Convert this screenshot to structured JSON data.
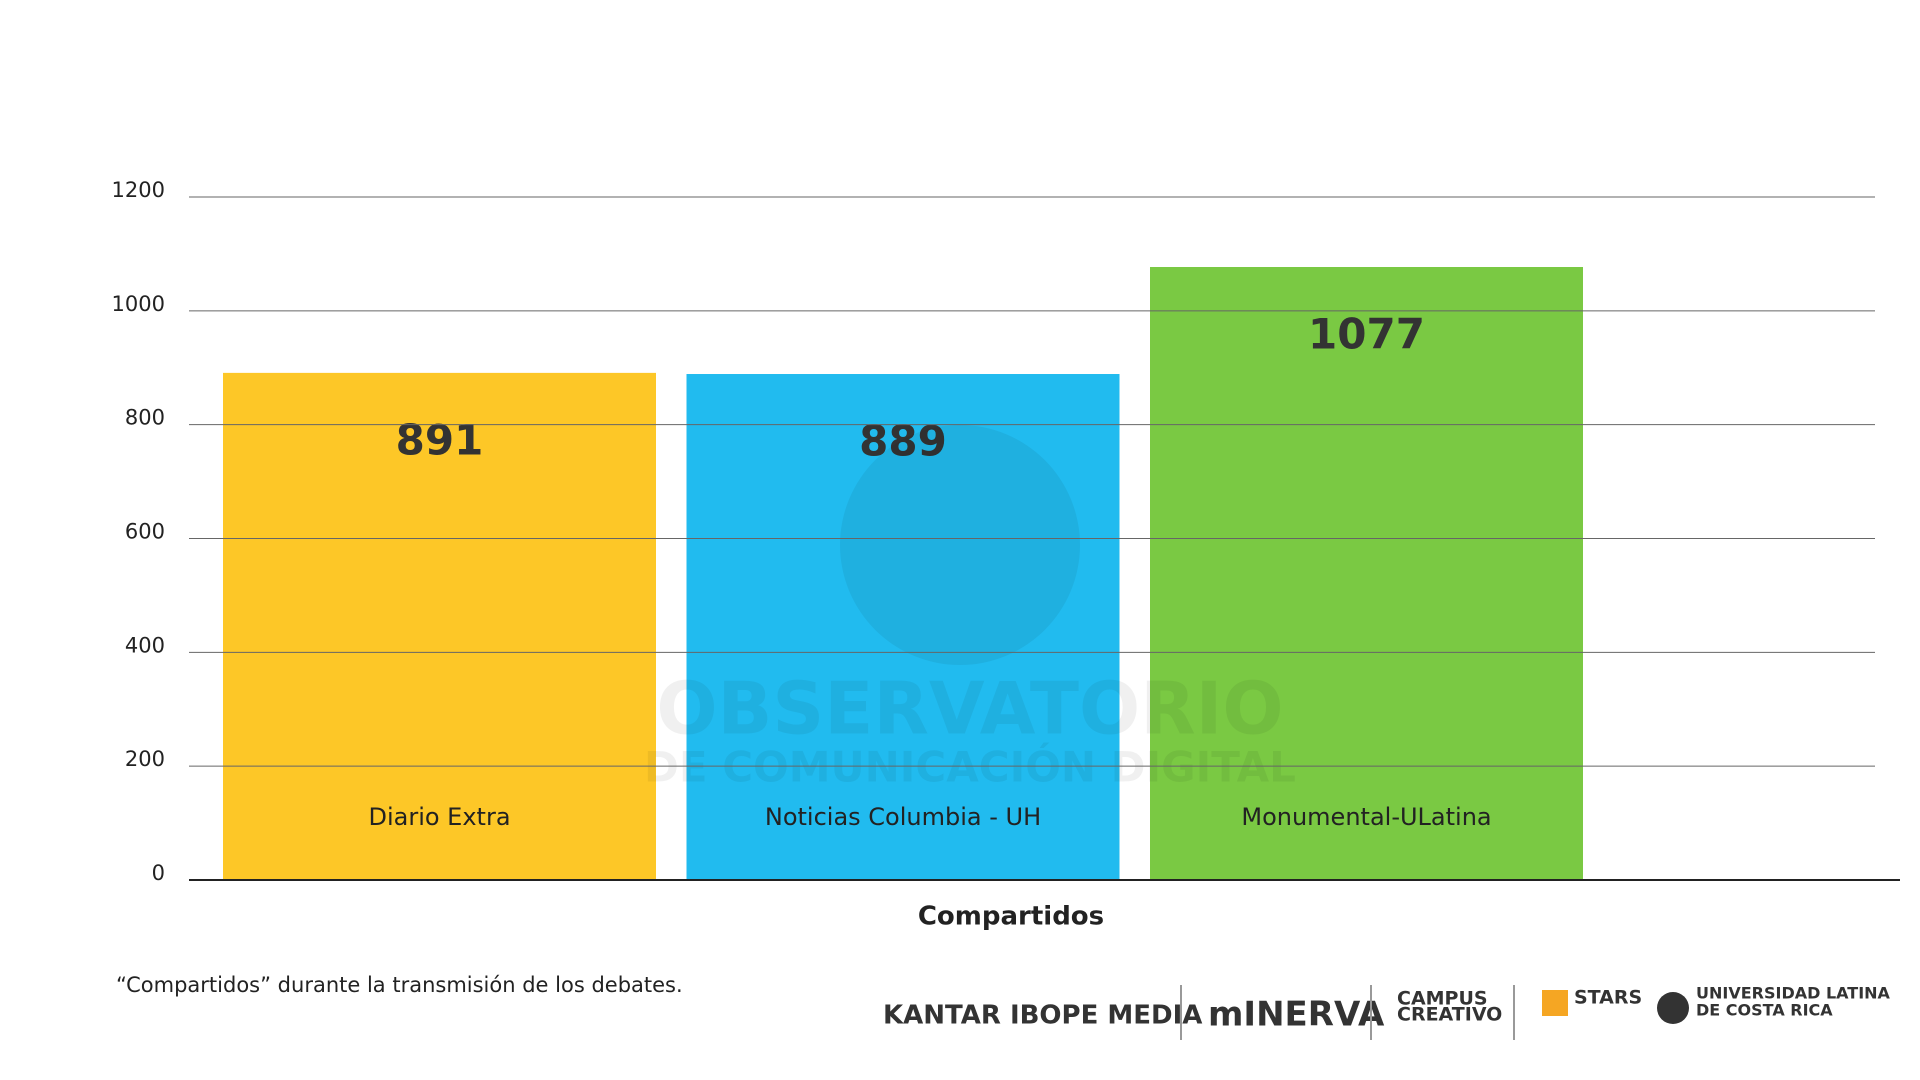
{
  "chart_data": {
    "type": "bar",
    "categories": [
      "Diario Extra",
      "Noticias Columbia - UH",
      "Monumental-ULatina"
    ],
    "values": [
      891,
      889,
      1077
    ],
    "colors": [
      "#fdc727",
      "#21bbef",
      "#7ac943"
    ],
    "x_label": "Compartidos",
    "ylim": [
      0,
      1200
    ],
    "yticks": [
      0,
      200,
      400,
      600,
      800,
      1000,
      1200
    ],
    "grid": true,
    "watermark": [
      "OBSERVATORIO",
      "DE COMUNICACIÓN DIGITAL"
    ],
    "footnote": "“Compartidos” durante la transmisión de los debates."
  },
  "logos": [
    "KANTAR IBOPE MEDIA",
    "mINERVA",
    "CAMPUS",
    "CREATIVO",
    "STARS",
    "UNIVERSIDAD LATINA",
    "DE COSTA RICA"
  ]
}
